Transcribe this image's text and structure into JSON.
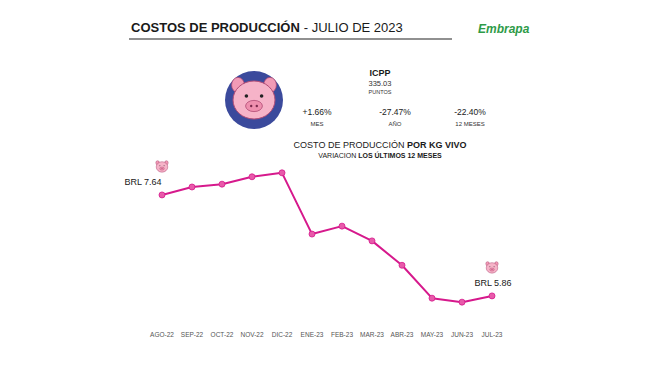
{
  "chart_data": {
    "type": "line",
    "title": "COSTOS DE PRODUCCIÓN",
    "title_date": "- JULIO DE 2023",
    "logo": "Embrapa",
    "index": {
      "name": "ICPP",
      "value": 335.03,
      "unit": "PUNTOS",
      "changes": [
        {
          "value": 1.66,
          "label": "+1.66%",
          "period": "MES"
        },
        {
          "value": -27.47,
          "label": "-27.47%",
          "period": "AÑO"
        },
        {
          "value": -22.4,
          "label": "-22.40%",
          "period": "12 MESES"
        }
      ]
    },
    "subtitle": [
      [
        "COSTO DE PRODUCCIÓN ",
        "POR KG VIVO"
      ],
      [
        "VARIACION ",
        "LOS ÚLTIMOS 12 MESES"
      ]
    ],
    "categories": [
      "AGO-22",
      "SEP-22",
      "OCT-22",
      "NOV-22",
      "DIC-22",
      "ENE-23",
      "FEB-23",
      "MAR-23",
      "ABR-23",
      "MAY-23",
      "JUN-23",
      "JUL-23"
    ],
    "values": [
      7.64,
      7.78,
      7.83,
      7.96,
      8.03,
      6.95,
      7.09,
      6.83,
      6.4,
      5.82,
      5.75,
      5.86
    ],
    "value_labels": [
      "BRL 7.64",
      null,
      null,
      null,
      null,
      null,
      null,
      null,
      null,
      null,
      null,
      "BRL 5.86"
    ],
    "color": "#d6198c",
    "marker": "circle",
    "ylim": [
      5.4,
      8.3
    ],
    "tick_labels": "x",
    "grid": false
  }
}
